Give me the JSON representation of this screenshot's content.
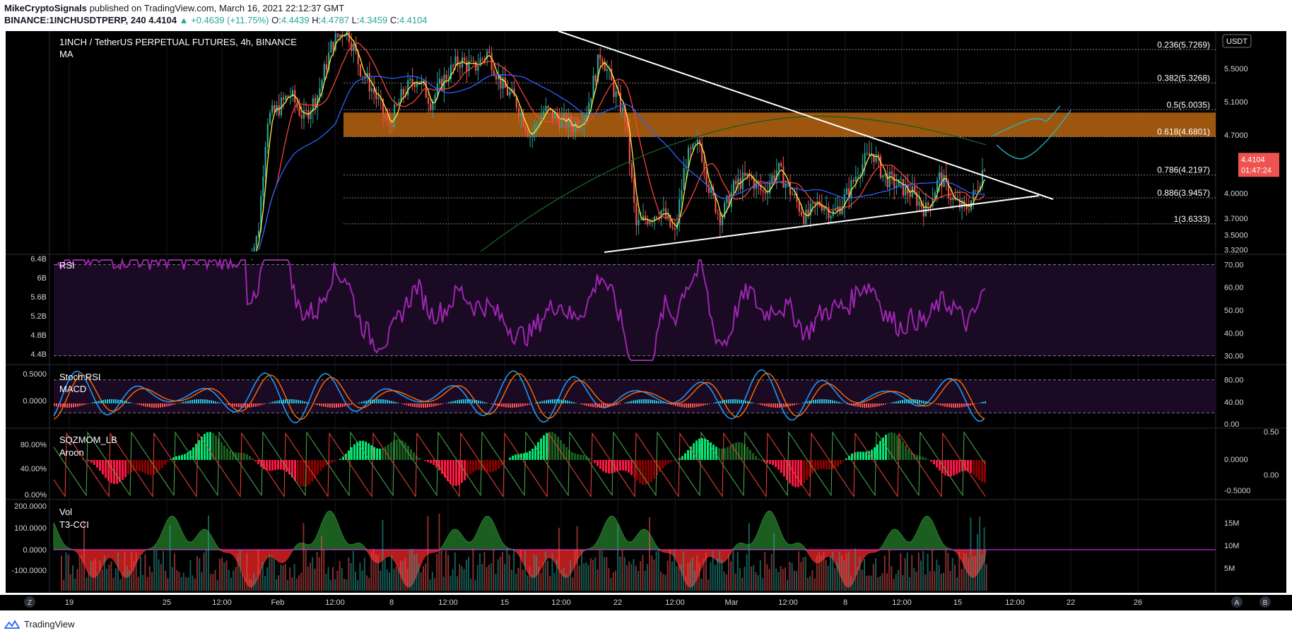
{
  "header": {
    "author": "MikeCryptoSignals",
    "published": "published on TradingView.com, March 16, 2021 22:12:37 GMT",
    "symbol": "BINANCE:1INCHUSDTPERP, 240",
    "last": "4.4104",
    "change": "+0.4639 (+11.75%)",
    "o_label": "O:",
    "open": "4.4439",
    "h_label": "H:",
    "high": "4.4787",
    "l_label": "L:",
    "low": "4.3459",
    "c_label": "C:",
    "close": "4.4104"
  },
  "main_pane": {
    "title": "1INCH / TetherUS PERPETUAL FUTURES, 4h, BINANCE",
    "indicator": "MA",
    "currency": "USDT",
    "price_ticks": [
      "5.5000",
      "5.1000",
      "4.7000",
      "4.0000",
      "3.7000",
      "3.5000",
      "3.3200"
    ],
    "last_price": "4.4104",
    "countdown": "01:47:24",
    "fib_levels": [
      {
        "label": "0.236(5.7269)",
        "price": 5.7269
      },
      {
        "label": "0.382(5.3268)",
        "price": 5.3268
      },
      {
        "label": "0.5(5.0035)",
        "price": 5.0035
      },
      {
        "label": "0.618(4.6801)",
        "price": 4.6801
      },
      {
        "label": "0.786(4.2197)",
        "price": 4.2197
      },
      {
        "label": "0.886(3.9457)",
        "price": 3.9457
      },
      {
        "label": "1(3.6333)",
        "price": 3.6333
      }
    ]
  },
  "rsi_pane": {
    "title": "RSI",
    "left_ticks": [
      "6.4B",
      "6B",
      "5.6B",
      "5.2B",
      "4.8B",
      "4.4B"
    ],
    "right_ticks": [
      "70.00",
      "60.00",
      "50.00",
      "40.00",
      "30.00"
    ]
  },
  "stoch_pane": {
    "title1": "Stoch RSI",
    "title2": "MACD",
    "left_ticks": [
      "0.5000",
      "0.0000"
    ],
    "right_ticks": [
      "80.00",
      "40.00",
      "0.00"
    ]
  },
  "sqz_pane": {
    "title1": "SQZMOM_LB",
    "title2": "Aroon",
    "left_ticks": [
      "80.00%",
      "40.00%",
      "0.00%"
    ],
    "right_ticks": [
      "0.0000",
      "-0.5000"
    ],
    "far_right_ticks": [
      "0.50",
      "0.00"
    ]
  },
  "vol_pane": {
    "title1": "Vol",
    "title2": "T3-CCI",
    "left_ticks": [
      "200.0000",
      "100.0000",
      "0.0000",
      "-100.0000"
    ],
    "right_ticks": [
      "15M",
      "10M",
      "5M"
    ]
  },
  "time_axis": [
    "19",
    "25",
    "12:00",
    "Feb",
    "12:00",
    "8",
    "12:00",
    "15",
    "12:00",
    "22",
    "12:00",
    "Mar",
    "12:00",
    "8",
    "12:00",
    "15",
    "12:00",
    "22",
    "26"
  ],
  "corner_buttons": {
    "left": "Z",
    "right1": "A",
    "right2": "B"
  },
  "footer": {
    "brand": "TradingView"
  },
  "colors": {
    "background": "#000000",
    "up": "#26a69a",
    "down": "#ef5350",
    "zone": "#b8650f",
    "rsi": "#9c27b0",
    "ma_short": "#ffeb3b",
    "ma_mid": "#f44336",
    "ma_long": "#2962ff",
    "ma_200": "#1b5e20",
    "price_tag": "#ef5350",
    "projection": "#22b8cf"
  }
}
